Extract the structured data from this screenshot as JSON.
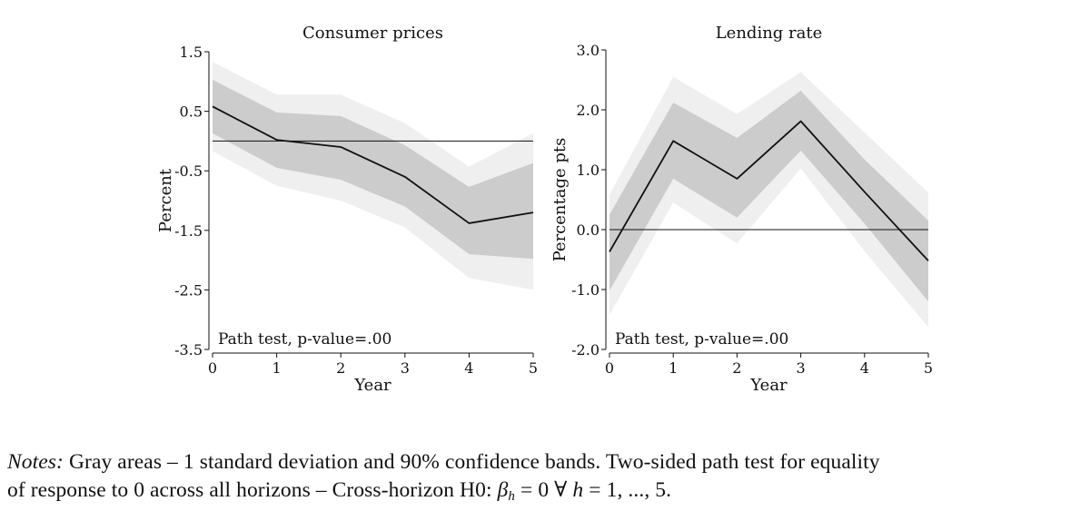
{
  "chart_data": [
    {
      "type": "line",
      "title": "Consumer prices",
      "xlabel": "Year",
      "ylabel": "Percent",
      "x": [
        0,
        1,
        2,
        3,
        4,
        5
      ],
      "xlim": [
        0,
        5
      ],
      "ylim": [
        -3.5,
        1.5
      ],
      "yticks": [
        1.5,
        0.5,
        -0.5,
        -1.5,
        -2.5,
        -3.5
      ],
      "ytick_labels": [
        "1.5",
        "0.5",
        "-0.5",
        "-1.5",
        "-2.5",
        "-3.5"
      ],
      "xtick_labels": [
        "0",
        "1",
        "2",
        "3",
        "4",
        "5"
      ],
      "zero_line": 0,
      "series": [
        {
          "name": "Response",
          "values": [
            0.58,
            0.02,
            -0.1,
            -0.6,
            -1.38,
            -1.2
          ]
        },
        {
          "name": "1 s.d. band upper",
          "values": [
            1.03,
            0.48,
            0.42,
            -0.07,
            -0.77,
            -0.37
          ]
        },
        {
          "name": "1 s.d. band lower",
          "values": [
            0.13,
            -0.45,
            -0.65,
            -1.1,
            -1.9,
            -1.98
          ]
        },
        {
          "name": "90% band upper",
          "values": [
            1.33,
            0.78,
            0.78,
            0.3,
            -0.43,
            0.13
          ]
        },
        {
          "name": "90% band lower",
          "values": [
            -0.17,
            -0.75,
            -1.0,
            -1.45,
            -2.3,
            -2.5
          ]
        }
      ],
      "annotation": "Path test, p-value=.00"
    },
    {
      "type": "line",
      "title": "Lending rate",
      "xlabel": "Year",
      "ylabel": "Percentage pts",
      "x": [
        0,
        1,
        2,
        3,
        4,
        5
      ],
      "xlim": [
        0,
        5
      ],
      "ylim": [
        -2.0,
        3.0
      ],
      "yticks": [
        3.0,
        2.0,
        1.0,
        0.0,
        -1.0,
        -2.0
      ],
      "ytick_labels": [
        "3.0",
        "2.0",
        "1.0",
        "0.0",
        "-1.0",
        "-2.0"
      ],
      "xtick_labels": [
        "0",
        "1",
        "2",
        "3",
        "4",
        "5"
      ],
      "zero_line": 0,
      "series": [
        {
          "name": "Response",
          "values": [
            -0.37,
            1.48,
            0.85,
            1.81,
            0.63,
            -0.52
          ]
        },
        {
          "name": "1 s.d. band upper",
          "values": [
            0.25,
            2.12,
            1.53,
            2.32,
            1.17,
            0.15
          ]
        },
        {
          "name": "1 s.d. band lower",
          "values": [
            -1.02,
            0.85,
            0.2,
            1.32,
            0.1,
            -1.2
          ]
        },
        {
          "name": "90% band upper",
          "values": [
            0.58,
            2.55,
            1.93,
            2.63,
            1.62,
            0.62
          ]
        },
        {
          "name": "90% band lower",
          "values": [
            -1.42,
            0.45,
            -0.23,
            1.02,
            -0.36,
            -1.63
          ]
        }
      ],
      "annotation": "Path test, p-value=.00"
    }
  ],
  "colors": {
    "band_90": "#efefef",
    "band_1sd": "#cccccc",
    "line": "#111111",
    "zero_line": "#111111"
  },
  "notes": {
    "label": "Notes:",
    "text_line1": "Gray areas – 1 standard deviation and 90% confidence bands. Two-sided path test for equality",
    "text_line2": "of response to 0 across all horizons – Cross-horizon H0:",
    "math_beta": "β",
    "math_sub": "h",
    "math_rest": "= 0 ∀",
    "math_h": "h",
    "math_tail": "= 1, ..., 5."
  }
}
